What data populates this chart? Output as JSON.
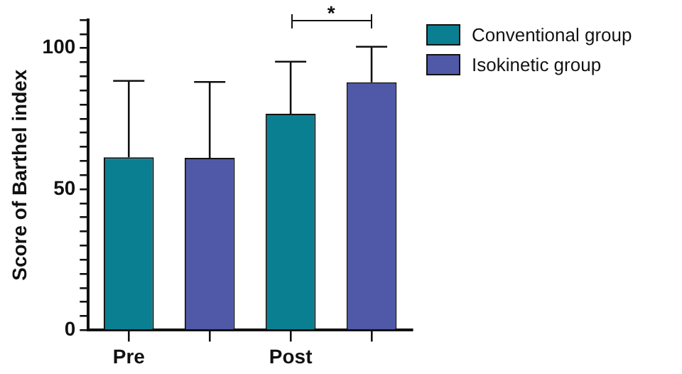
{
  "chart_data": {
    "type": "bar",
    "ylabel": "Score of Barthel index",
    "categories": [
      "Pre",
      null,
      "Post",
      null
    ],
    "series": [
      {
        "name": "Conventional group",
        "color": "#0b7f92",
        "values": [
          61.3,
          null,
          76.7,
          null
        ],
        "errors": [
          [
            61.3,
            88.4
          ],
          null,
          [
            76.7,
            95.2
          ],
          null
        ]
      },
      {
        "name": "Isokinetic group",
        "color": "#4f59a8",
        "values": [
          null,
          61.1,
          null,
          87.9
        ],
        "errors": [
          null,
          [
            61.1,
            88.0
          ],
          null,
          [
            87.9,
            100.5
          ]
        ]
      }
    ],
    "ylim": [
      0,
      110
    ],
    "yticks": [
      0,
      {
        "value": 5,
        "label": null
      },
      {
        "value": 10,
        "label": null
      },
      {
        "value": 15,
        "label": null
      },
      {
        "value": 20,
        "label": null
      },
      {
        "value": 25,
        "label": null
      },
      {
        "value": 30,
        "label": null
      },
      {
        "value": 35,
        "label": null
      },
      {
        "value": 40,
        "label": null
      },
      {
        "value": 45,
        "label": null
      },
      50,
      {
        "value": 55,
        "label": null
      },
      {
        "value": 60,
        "label": null
      },
      {
        "value": 65,
        "label": null
      },
      {
        "value": 70,
        "label": null
      },
      {
        "value": 75,
        "label": null
      },
      {
        "value": 80,
        "label": null
      },
      {
        "value": 85,
        "label": null
      },
      {
        "value": 90,
        "label": null
      },
      {
        "value": 95,
        "label": null
      },
      100,
      {
        "value": 105,
        "label": null
      },
      {
        "value": 110,
        "label": null
      }
    ],
    "annotations": [
      "*"
    ],
    "grid": false,
    "legend": "top right"
  }
}
